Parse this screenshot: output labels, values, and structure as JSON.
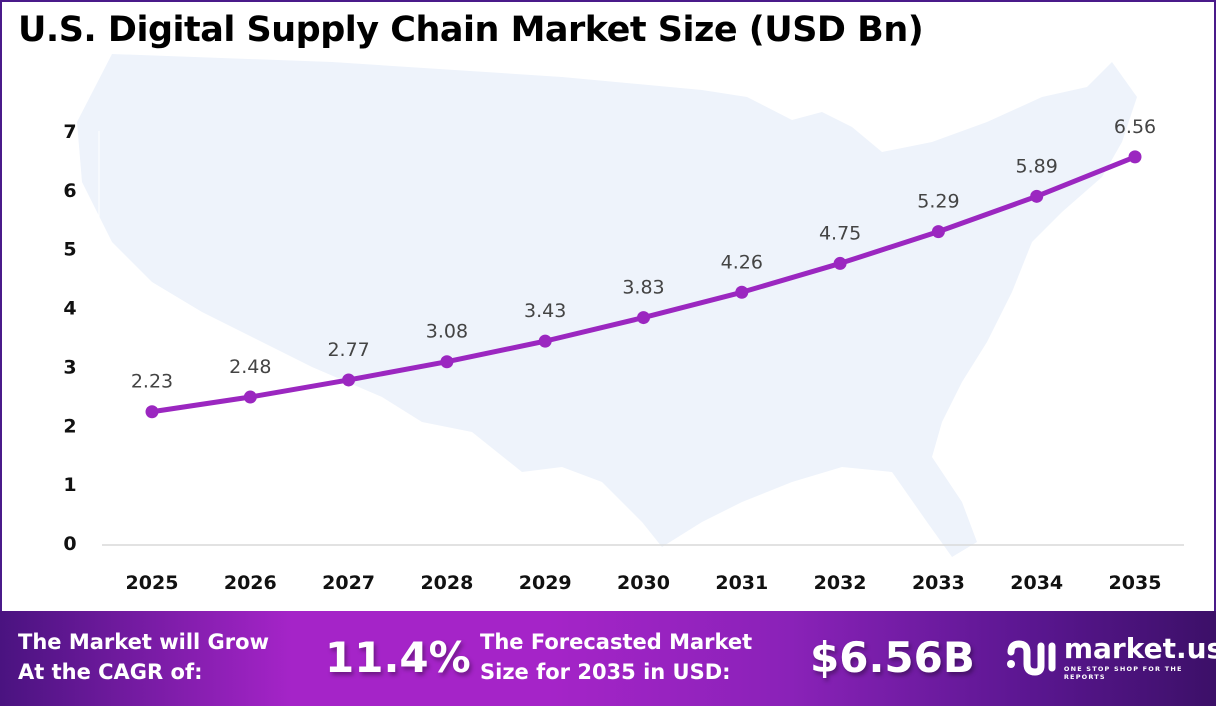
{
  "title": "U.S. Digital Supply Chain Market Size (USD Bn)",
  "chart_data": {
    "type": "line",
    "title": "U.S. Digital Supply Chain Market Size (USD Bn)",
    "categories": [
      "2025",
      "2026",
      "2027",
      "2028",
      "2029",
      "2030",
      "2031",
      "2032",
      "2033",
      "2034",
      "2035"
    ],
    "values": [
      2.23,
      2.48,
      2.77,
      3.08,
      3.43,
      3.83,
      4.26,
      4.75,
      5.29,
      5.89,
      6.56
    ],
    "data_labels": [
      "2.23",
      "2.48",
      "2.77",
      "3.08",
      "3.43",
      "3.83",
      "4.26",
      "4.75",
      "5.29",
      "5.89",
      "6.56"
    ],
    "yticks": [
      "0",
      "1",
      "2",
      "3",
      "4",
      "5",
      "6",
      "7"
    ],
    "ylim": [
      0,
      7
    ],
    "grid": false,
    "line_color": "#9b27c0",
    "background": "U.S. map silhouette"
  },
  "footer": {
    "cagr_label_1": "The Market will Grow",
    "cagr_label_2": "At the CAGR of:",
    "cagr_value": "11.4%",
    "forecast_label_1": "The Forecasted Market",
    "forecast_label_2": "Size for 2035 in USD:",
    "forecast_value": "$6.56B",
    "logo_name": "market.us",
    "logo_tagline": "ONE STOP SHOP FOR THE REPORTS"
  }
}
